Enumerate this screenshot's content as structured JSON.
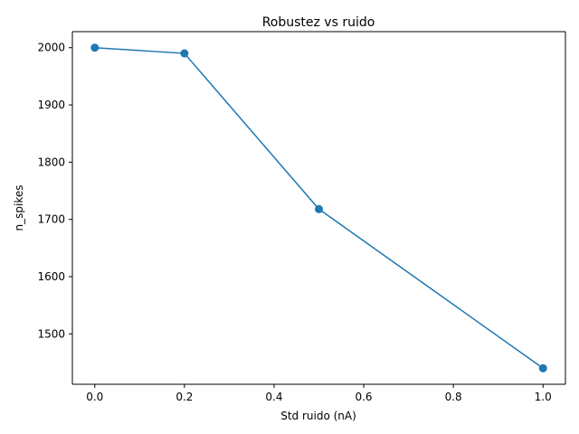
{
  "chart_data": {
    "type": "line",
    "title": "Robustez vs ruido",
    "xlabel": "Std ruido (nA)",
    "ylabel": "n_spikes",
    "x": [
      0.0,
      0.2,
      0.5,
      1.0
    ],
    "series": [
      {
        "values": [
          2000,
          1990,
          1718,
          1440
        ],
        "color": "#1f77b4",
        "marker": "circle"
      }
    ],
    "xlim": [
      -0.05,
      1.05
    ],
    "ylim": [
      1412,
      2028
    ],
    "xticks": [
      0.0,
      0.2,
      0.4,
      0.6,
      0.8,
      1.0
    ],
    "xtick_labels": [
      "0.0",
      "0.2",
      "0.4",
      "0.6",
      "0.8",
      "1.0"
    ],
    "yticks": [
      1500,
      1600,
      1700,
      1800,
      1900,
      2000
    ],
    "ytick_labels": [
      "1500",
      "1600",
      "1700",
      "1800",
      "1900",
      "2000"
    ],
    "grid": false,
    "legend": "none"
  }
}
